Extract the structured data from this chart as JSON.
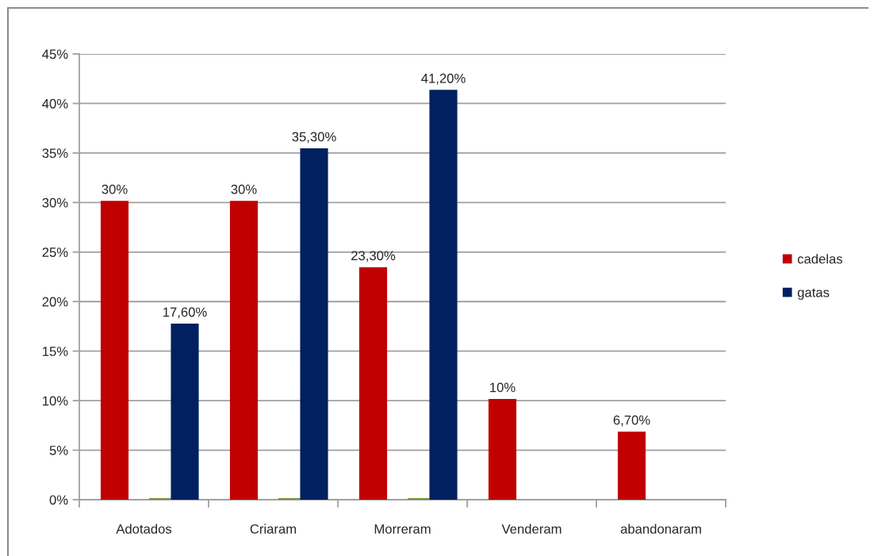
{
  "chart_data": {
    "type": "bar",
    "categories": [
      "Adotados",
      "Criaram",
      "Morreram",
      "Venderam",
      "abandonaram"
    ],
    "series": [
      {
        "name": "cadelas",
        "color": "#c00000",
        "values": [
          30,
          30,
          23.3,
          10,
          6.7
        ],
        "value_labels": [
          "30%",
          "30%",
          "23,30%",
          "10%",
          "6,70%"
        ]
      },
      {
        "color": "#77933c",
        "values": [
          0,
          0,
          0,
          null,
          null
        ]
      },
      {
        "name": "gatas",
        "color": "#002060",
        "values": [
          17.6,
          35.3,
          41.2,
          null,
          null
        ],
        "value_labels": [
          "17,60%",
          "35,30%",
          "41,20%",
          null,
          null
        ]
      }
    ],
    "ylim": [
      0,
      45
    ],
    "yticks": [
      {
        "value": 0,
        "label": "0%"
      },
      {
        "value": 5,
        "label": "5%"
      },
      {
        "value": 10,
        "label": "10%"
      },
      {
        "value": 15,
        "label": "15%"
      },
      {
        "value": 20,
        "label": "20%"
      },
      {
        "value": 25,
        "label": "25%"
      },
      {
        "value": 30,
        "label": "30%"
      },
      {
        "value": 35,
        "label": "35%"
      },
      {
        "value": 40,
        "label": "40%"
      },
      {
        "value": 45,
        "label": "45%"
      }
    ],
    "grid": "y",
    "legend": "right"
  }
}
